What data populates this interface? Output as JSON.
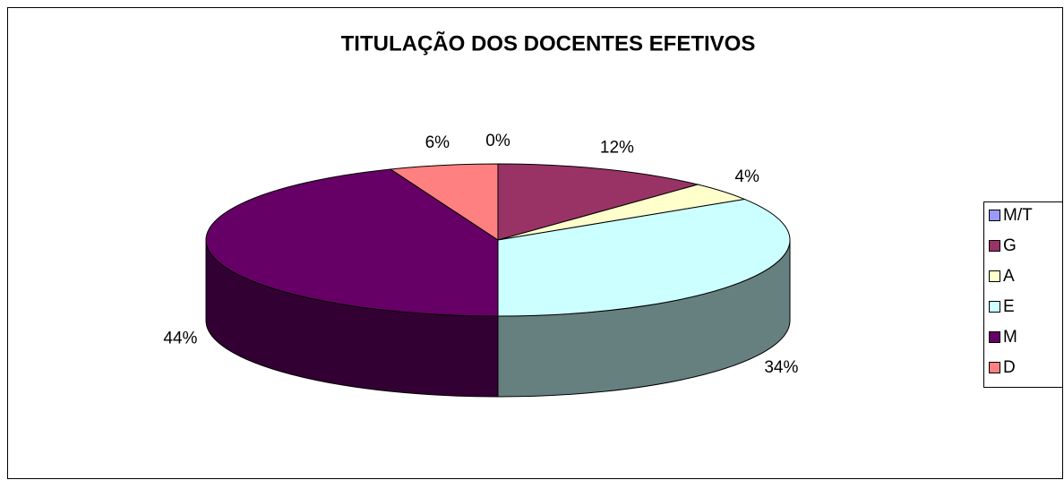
{
  "chart_data": {
    "type": "pie",
    "title": "TITULAÇÃO DOS DOCENTES EFETIVOS",
    "categories": [
      "M/T",
      "G",
      "A",
      "E",
      "M",
      "D"
    ],
    "values": [
      0,
      12,
      4,
      34,
      44,
      6
    ],
    "value_labels": [
      "0%",
      "12%",
      "4%",
      "34%",
      "44%",
      "6%"
    ],
    "colors": [
      "#9999ff",
      "#993366",
      "#ffffcc",
      "#ccffff",
      "#660066",
      "#ff8080"
    ],
    "legend": "right"
  }
}
